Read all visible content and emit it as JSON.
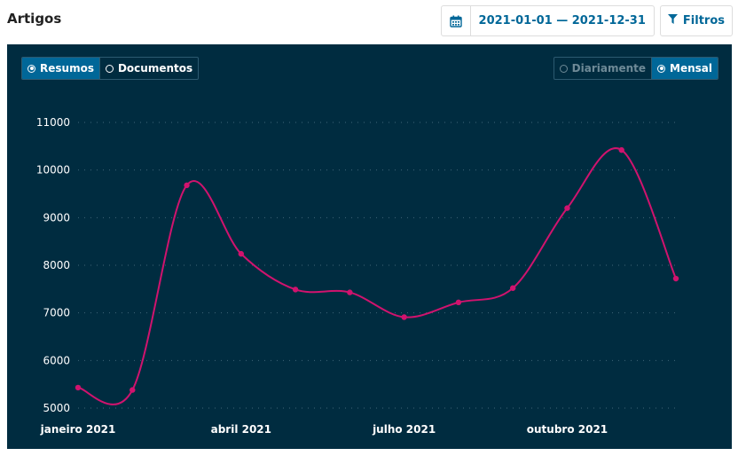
{
  "header": {
    "title": "Artigos"
  },
  "toolbar": {
    "date_range_icon": "calendar-icon",
    "date_range_label": "2021-01-01 — 2021-12-31",
    "filter_icon": "filter-icon",
    "filter_label": "Filtros"
  },
  "panel": {
    "type_toggles": [
      {
        "label": "Resumos",
        "active": true
      },
      {
        "label": "Documentos",
        "active": false
      }
    ],
    "interval_toggles": [
      {
        "label": "Diariamente",
        "active": false
      },
      {
        "label": "Mensal",
        "active": true
      }
    ]
  },
  "colors": {
    "panel_bg": "#002c40",
    "accent": "#006798",
    "line": "#d0136e"
  },
  "chart_data": {
    "type": "line",
    "title": "",
    "xlabel": "",
    "ylabel": "",
    "ylim": [
      5000,
      11000
    ],
    "yticks": [
      5000,
      6000,
      7000,
      8000,
      9000,
      10000,
      11000
    ],
    "x_tick_labels": [
      {
        "index": 0,
        "label": "janeiro 2021"
      },
      {
        "index": 3,
        "label": "abril 2021"
      },
      {
        "index": 6,
        "label": "julho 2021"
      },
      {
        "index": 9,
        "label": "outubro 2021"
      }
    ],
    "x": [
      "2021-01",
      "2021-02",
      "2021-03",
      "2021-04",
      "2021-05",
      "2021-06",
      "2021-07",
      "2021-08",
      "2021-09",
      "2021-10",
      "2021-11",
      "2021-12"
    ],
    "series": [
      {
        "values": [
          5430,
          5380,
          9680,
          8240,
          7490,
          7430,
          6910,
          7220,
          7520,
          9200,
          10420,
          7720
        ]
      }
    ],
    "grid": true
  }
}
